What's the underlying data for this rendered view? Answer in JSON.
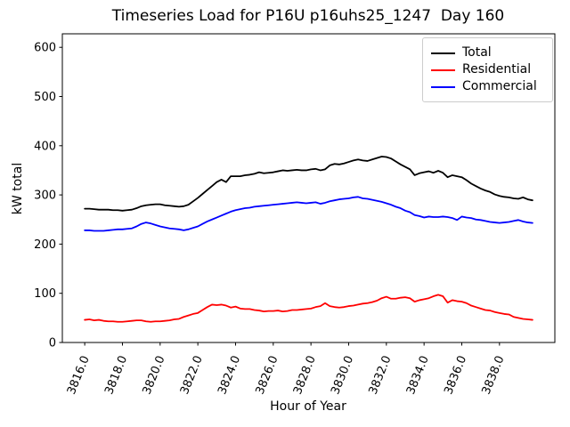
{
  "figure": {
    "background": "#ffffff",
    "axes_edge_color": "#000000",
    "legend_border_color": "#cccccc"
  },
  "chart_data": {
    "type": "line",
    "title": "Timeseries Load for P16U p16uhs25_1247  Day 160",
    "xlabel": "Hour of Year",
    "ylabel": "kW total",
    "xlim": [
      3814.8125,
      3840.9375
    ],
    "ylim": [
      0,
      627.5
    ],
    "grid": false,
    "legend_position": "upper right",
    "xticks": {
      "values": [
        3816,
        3818,
        3820,
        3822,
        3824,
        3826,
        3828,
        3830,
        3832,
        3834,
        3836,
        3838
      ],
      "labels": [
        "3816.0",
        "3818.0",
        "3820.0",
        "3822.0",
        "3824.0",
        "3826.0",
        "3828.0",
        "3830.0",
        "3832.0",
        "3834.0",
        "3836.0",
        "3838.0"
      ],
      "rotation_deg": 68
    },
    "yticks": {
      "values": [
        0,
        100,
        200,
        300,
        400,
        500,
        600
      ],
      "labels": [
        "0",
        "100",
        "200",
        "300",
        "400",
        "500",
        "600"
      ]
    },
    "x": {
      "start": 3816.0,
      "step": 0.25,
      "count": 96
    },
    "series": [
      {
        "name": "Total",
        "color": "#000000",
        "values": [
          272,
          272,
          271,
          270,
          270,
          270,
          269,
          269,
          268,
          269,
          270,
          273,
          277,
          279,
          280,
          281,
          281,
          279,
          278,
          277,
          276,
          277,
          280,
          287,
          294,
          302,
          310,
          318,
          326,
          331,
          326,
          338,
          338,
          338,
          340,
          341,
          343,
          346,
          344,
          345,
          346,
          348,
          350,
          349,
          350,
          351,
          350,
          350,
          352,
          353,
          350,
          352,
          360,
          363,
          362,
          364,
          367,
          370,
          372,
          370,
          369,
          372,
          375,
          378,
          377,
          374,
          368,
          362,
          357,
          352,
          340,
          344,
          346,
          348,
          345,
          349,
          345,
          336,
          340,
          338,
          336,
          330,
          323,
          318,
          313,
          309,
          306,
          301,
          298,
          296,
          295,
          293,
          292,
          295,
          291,
          289
        ]
      },
      {
        "name": "Residential",
        "color": "#ff0000",
        "values": [
          46,
          47,
          45,
          46,
          44,
          43,
          43,
          42,
          42,
          43,
          44,
          45,
          45,
          43,
          42,
          43,
          43,
          44,
          45,
          47,
          48,
          52,
          55,
          58,
          60,
          66,
          72,
          77,
          76,
          77,
          75,
          71,
          73,
          69,
          68,
          68,
          66,
          65,
          63,
          64,
          64,
          65,
          63,
          64,
          66,
          66,
          67,
          68,
          69,
          72,
          74,
          80,
          74,
          72,
          71,
          72,
          74,
          75,
          77,
          79,
          80,
          82,
          85,
          90,
          93,
          89,
          89,
          91,
          92,
          90,
          83,
          86,
          88,
          90,
          94,
          97,
          94,
          81,
          86,
          84,
          83,
          80,
          75,
          72,
          69,
          66,
          65,
          62,
          60,
          58,
          57,
          52,
          50,
          48,
          47,
          46
        ]
      },
      {
        "name": "Commercial",
        "color": "#0000ff",
        "values": [
          228,
          228,
          227,
          227,
          227,
          228,
          229,
          230,
          230,
          231,
          232,
          236,
          241,
          244,
          242,
          239,
          236,
          234,
          232,
          231,
          230,
          228,
          230,
          233,
          236,
          241,
          246,
          250,
          254,
          258,
          262,
          266,
          269,
          271,
          273,
          274,
          276,
          277,
          278,
          279,
          280,
          281,
          282,
          283,
          284,
          285,
          284,
          283,
          284,
          285,
          282,
          284,
          287,
          289,
          291,
          292,
          293,
          295,
          296,
          293,
          292,
          290,
          288,
          286,
          283,
          280,
          276,
          273,
          268,
          265,
          259,
          257,
          254,
          256,
          255,
          255,
          256,
          255,
          253,
          249,
          256,
          254,
          253,
          250,
          249,
          247,
          245,
          244,
          243,
          244,
          245,
          247,
          249,
          246,
          244,
          243
        ]
      }
    ]
  }
}
